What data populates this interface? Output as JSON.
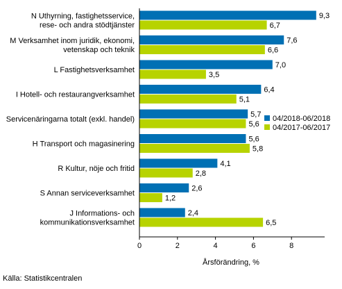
{
  "chart_data": {
    "type": "bar",
    "orientation": "horizontal",
    "categories": [
      [
        "N Uthyrning, fastighetsservice,",
        "rese- och andra stödtjänster"
      ],
      [
        "M Verksamhet inom juridik, ekonomi,",
        "vetenskap och teknik"
      ],
      [
        "L Fastighetsverksamhet"
      ],
      [
        "I Hotell- och restaurangverksamhet"
      ],
      [
        "Servicenäringarna totalt (exkl. handel)"
      ],
      [
        "H Transport och magasinering"
      ],
      [
        "R Kultur, nöje och fritid"
      ],
      [
        "S Annan serviceverksamhet"
      ],
      [
        "J Informations- och",
        "kommunikationsverksamhet"
      ]
    ],
    "series": [
      {
        "name": "04/2018-06/2018",
        "color": "#0070b4",
        "values": [
          9.3,
          7.6,
          7.0,
          6.4,
          5.7,
          5.6,
          4.1,
          2.6,
          2.4
        ],
        "labels": [
          "9,3",
          "7,6",
          "7,0",
          "6,4",
          "5,7",
          "5,6",
          "4,1",
          "2,6",
          "2,4"
        ]
      },
      {
        "name": "04/2017-06/2017",
        "color": "#b7d300",
        "values": [
          6.7,
          6.6,
          3.5,
          5.1,
          5.6,
          5.8,
          2.8,
          1.2,
          6.5
        ],
        "labels": [
          "6,7",
          "6,6",
          "3,5",
          "5,1",
          "5,6",
          "5,8",
          "2,8",
          "1,2",
          "6,5"
        ]
      }
    ],
    "xlabel": "Årsförändring, %",
    "xlim": [
      0,
      10
    ],
    "xticks": [
      0,
      2,
      4,
      6,
      8
    ],
    "xtick_labels": [
      "0",
      "2",
      "4",
      "6",
      "8"
    ],
    "grid": false,
    "legend_placement": "right, next to the Servicenäringarna totalt bars"
  },
  "source": "Källa: Statistikcentralen"
}
